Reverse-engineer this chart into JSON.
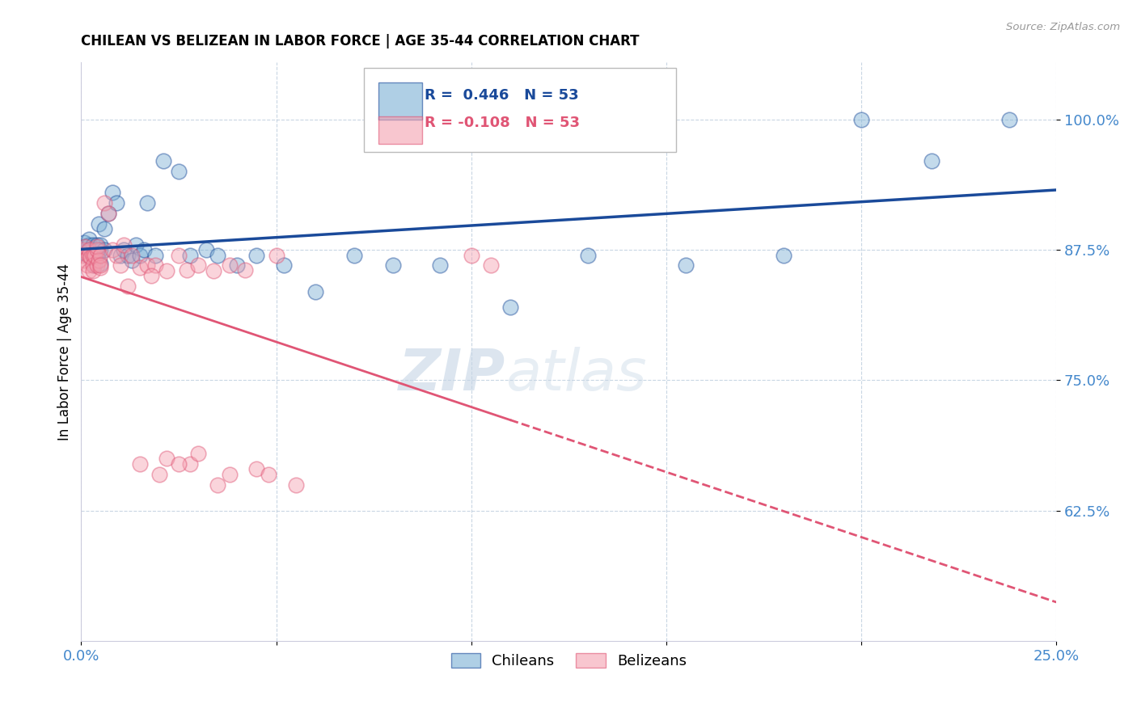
{
  "title": "CHILEAN VS BELIZEAN IN LABOR FORCE | AGE 35-44 CORRELATION CHART",
  "source": "Source: ZipAtlas.com",
  "ylabel": "In Labor Force | Age 35-44",
  "xlim": [
    0.0,
    0.25
  ],
  "ylim": [
    0.5,
    1.055
  ],
  "xticks": [
    0.0,
    0.05,
    0.1,
    0.15,
    0.2,
    0.25
  ],
  "xticklabels": [
    "0.0%",
    "",
    "",
    "",
    "",
    "25.0%"
  ],
  "yticks": [
    0.625,
    0.75,
    0.875,
    1.0
  ],
  "yticklabels": [
    "62.5%",
    "75.0%",
    "87.5%",
    "100.0%"
  ],
  "blue_R": 0.446,
  "blue_N": 53,
  "pink_R": -0.108,
  "pink_N": 53,
  "blue_color": "#7BAFD4",
  "pink_color": "#F4A0B0",
  "trendline_blue": "#1A4A9A",
  "trendline_pink": "#E05575",
  "watermark_zip": "ZIP",
  "watermark_atlas": "atlas",
  "legend_labels": [
    "Chileans",
    "Belizeans"
  ],
  "blue_x": [
    0.0005,
    0.0008,
    0.001,
    0.001,
    0.0015,
    0.002,
    0.002,
    0.002,
    0.0025,
    0.003,
    0.003,
    0.003,
    0.0035,
    0.004,
    0.004,
    0.004,
    0.0045,
    0.005,
    0.005,
    0.005,
    0.006,
    0.006,
    0.007,
    0.008,
    0.009,
    0.01,
    0.011,
    0.012,
    0.013,
    0.014,
    0.015,
    0.016,
    0.017,
    0.019,
    0.021,
    0.025,
    0.028,
    0.032,
    0.035,
    0.04,
    0.045,
    0.052,
    0.06,
    0.07,
    0.08,
    0.092,
    0.11,
    0.13,
    0.155,
    0.18,
    0.2,
    0.218,
    0.238
  ],
  "blue_y": [
    0.875,
    0.882,
    0.872,
    0.878,
    0.87,
    0.875,
    0.88,
    0.885,
    0.875,
    0.87,
    0.875,
    0.88,
    0.86,
    0.87,
    0.875,
    0.88,
    0.9,
    0.862,
    0.875,
    0.88,
    0.875,
    0.895,
    0.91,
    0.93,
    0.92,
    0.87,
    0.875,
    0.87,
    0.865,
    0.88,
    0.87,
    0.875,
    0.92,
    0.87,
    0.96,
    0.95,
    0.87,
    0.875,
    0.87,
    0.86,
    0.87,
    0.86,
    0.835,
    0.87,
    0.86,
    0.86,
    0.82,
    0.87,
    0.86,
    0.87,
    1.0,
    0.96,
    1.0
  ],
  "pink_x": [
    0.0004,
    0.0006,
    0.001,
    0.001,
    0.0015,
    0.002,
    0.002,
    0.002,
    0.0025,
    0.003,
    0.003,
    0.003,
    0.0035,
    0.004,
    0.004,
    0.004,
    0.0045,
    0.005,
    0.005,
    0.005,
    0.006,
    0.007,
    0.008,
    0.009,
    0.01,
    0.011,
    0.013,
    0.015,
    0.017,
    0.019,
    0.022,
    0.025,
    0.027,
    0.03,
    0.034,
    0.038,
    0.042,
    0.05,
    0.045,
    0.055,
    0.048,
    0.022,
    0.028,
    0.035,
    0.015,
    0.02,
    0.025,
    0.03,
    0.038,
    0.018,
    0.012,
    0.1,
    0.105
  ],
  "pink_y": [
    0.875,
    0.87,
    0.878,
    0.865,
    0.86,
    0.875,
    0.87,
    0.855,
    0.868,
    0.87,
    0.86,
    0.855,
    0.87,
    0.875,
    0.86,
    0.878,
    0.865,
    0.858,
    0.87,
    0.86,
    0.92,
    0.91,
    0.875,
    0.87,
    0.86,
    0.88,
    0.87,
    0.858,
    0.86,
    0.86,
    0.855,
    0.87,
    0.856,
    0.86,
    0.855,
    0.86,
    0.856,
    0.87,
    0.665,
    0.65,
    0.66,
    0.675,
    0.67,
    0.65,
    0.67,
    0.66,
    0.67,
    0.68,
    0.66,
    0.85,
    0.84,
    0.87,
    0.86
  ]
}
